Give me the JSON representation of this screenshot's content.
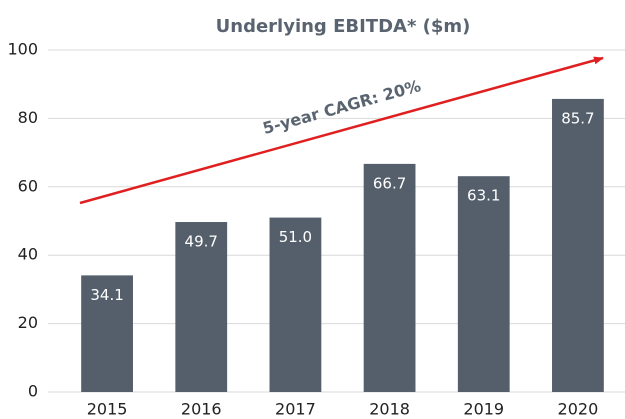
{
  "chart_data": {
    "type": "bar",
    "title": "Underlying EBITDA* ($m)",
    "annotation": "5-year CAGR: 20%",
    "categories": [
      "2015",
      "2016",
      "2017",
      "2018",
      "2019",
      "2020"
    ],
    "values": [
      34.1,
      49.7,
      51.0,
      66.7,
      63.1,
      85.7
    ],
    "value_labels": [
      "34.1",
      "49.7",
      "51.0",
      "66.7",
      "63.1",
      "85.7"
    ],
    "color": "#545f6b",
    "ylim": [
      0,
      100
    ],
    "yticks": [
      0,
      20,
      40,
      60,
      80,
      100
    ],
    "grid": true
  }
}
